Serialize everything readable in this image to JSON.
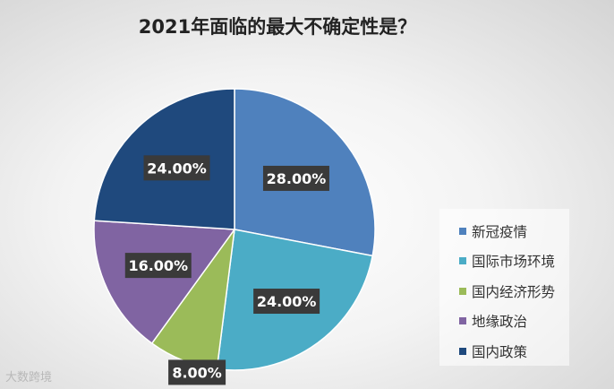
{
  "watermark": "大数跨境",
  "chart_data": {
    "type": "pie",
    "title": "2021年面临的最大不确定性是？",
    "categories": [
      "新冠疫情",
      "国际市场环境",
      "国内经济形势",
      "地缘政治",
      "国内政策"
    ],
    "values": [
      28.0,
      24.0,
      8.0,
      16.0,
      24.0
    ],
    "labels": [
      "28.00%",
      "24.00%",
      "8.00%",
      "16.00%",
      "24.00%"
    ],
    "colors": [
      "#4f81bd",
      "#4bacc6",
      "#9bbb59",
      "#8064a2",
      "#1f497d"
    ],
    "legend_position": "right",
    "start_angle_deg": 0,
    "direction": "clockwise"
  }
}
